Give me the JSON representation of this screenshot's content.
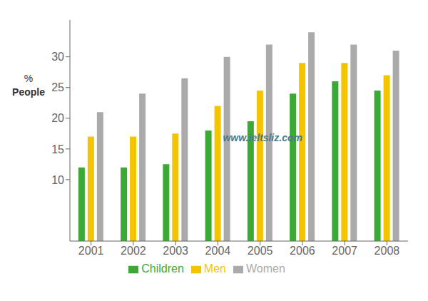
{
  "chart_data": {
    "type": "bar",
    "categories": [
      "2001",
      "2002",
      "2003",
      "2004",
      "2005",
      "2006",
      "2007",
      "2008"
    ],
    "series": [
      {
        "name": "Children",
        "color": "#3aaa35",
        "values": [
          12,
          12,
          12.5,
          18,
          19.5,
          24,
          26,
          24.5
        ]
      },
      {
        "name": "Men",
        "color": "#f5c400",
        "values": [
          17,
          17,
          17.5,
          22,
          24.5,
          29,
          29,
          27
        ]
      },
      {
        "name": "Women",
        "color": "#aaaaaa",
        "values": [
          21,
          24,
          26.5,
          30,
          32,
          34,
          32,
          31
        ]
      }
    ],
    "ylabel": [
      "%",
      "People"
    ],
    "annotations": [
      "www.ieltsliz.com"
    ],
    "ylim": [
      0,
      36
    ],
    "yticks": [
      10,
      15,
      20,
      25,
      30
    ],
    "grid": false,
    "legend": "bottom"
  }
}
